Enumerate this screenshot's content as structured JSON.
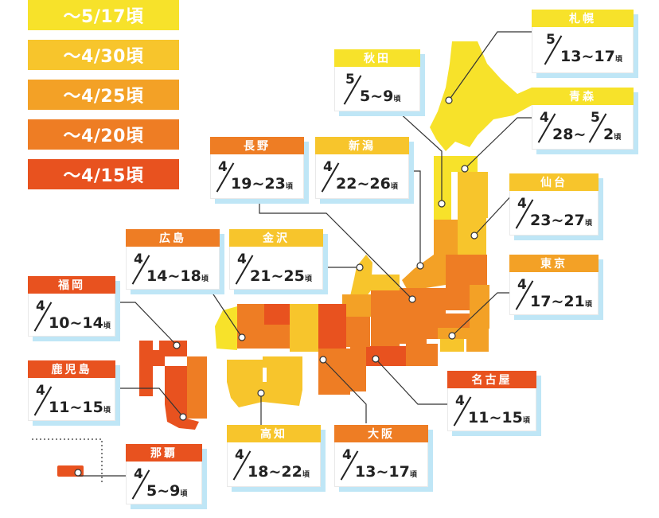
{
  "colors": {
    "c1": "#f7e22a",
    "c2": "#f7c52c",
    "c3": "#f3a126",
    "c4": "#ee7d24",
    "c5": "#e8521f",
    "leader": "#333333",
    "shadow": "#bfe6f6"
  },
  "legend": [
    {
      "label": "〜5/17頃",
      "color": "#f7e22a"
    },
    {
      "label": "〜4/30頃",
      "color": "#f7c52c"
    },
    {
      "label": "〜4/25頃",
      "color": "#f3a126"
    },
    {
      "label": "〜4/20頃",
      "color": "#ee7d24"
    },
    {
      "label": "〜4/15頃",
      "color": "#e8521f"
    }
  ],
  "cities": {
    "sapporo": {
      "name": "札幌",
      "month": "5",
      "days": "13~17",
      "suffix": "頃"
    },
    "akita": {
      "name": "秋田",
      "month": "5",
      "days": "5~9",
      "suffix": "頃"
    },
    "aomori": {
      "name": "青森",
      "month": "4",
      "days": "28~",
      "month2": "5",
      "days2": "2",
      "suffix": "頃"
    },
    "sendai": {
      "name": "仙台",
      "month": "4",
      "days": "23~27",
      "suffix": "頃"
    },
    "nagano": {
      "name": "長野",
      "month": "4",
      "days": "19~23",
      "suffix": "頃"
    },
    "niigata": {
      "name": "新潟",
      "month": "4",
      "days": "22~26",
      "suffix": "頃"
    },
    "hiroshima": {
      "name": "広島",
      "month": "4",
      "days": "14~18",
      "suffix": "頃"
    },
    "kanazawa": {
      "name": "金沢",
      "month": "4",
      "days": "21~25",
      "suffix": "頃"
    },
    "tokyo": {
      "name": "東京",
      "month": "4",
      "days": "17~21",
      "suffix": "頃"
    },
    "fukuoka": {
      "name": "福岡",
      "month": "4",
      "days": "10~14",
      "suffix": "頃"
    },
    "kagoshima": {
      "name": "鹿児島",
      "month": "4",
      "days": "11~15",
      "suffix": "頃"
    },
    "nagoya": {
      "name": "名古屋",
      "month": "4",
      "days": "11~15",
      "suffix": "頃"
    },
    "kochi": {
      "name": "高知",
      "month": "4",
      "days": "18~22",
      "suffix": "頃"
    },
    "osaka": {
      "name": "大阪",
      "month": "4",
      "days": "13~17",
      "suffix": "頃"
    },
    "naha": {
      "name": "那覇",
      "month": "4",
      "days": "5~9",
      "suffix": "頃"
    }
  }
}
